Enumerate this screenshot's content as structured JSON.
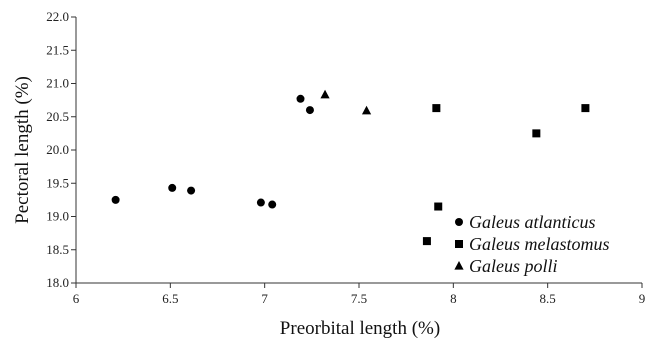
{
  "chart_data": {
    "type": "scatter",
    "xlabel": "Preorbital length (%)",
    "ylabel": "Pectoral length (%)",
    "xlim": [
      6,
      9
    ],
    "ylim": [
      18.0,
      22.0
    ],
    "x_ticks": [
      "6",
      "6.5",
      "7",
      "7.5",
      "8",
      "8.5",
      "9"
    ],
    "y_ticks": [
      "18.0",
      "18.5",
      "19.0",
      "19.5",
      "20.0",
      "20.5",
      "21.0",
      "21.5",
      "22.0"
    ],
    "legend_position": "bottom-right",
    "grid": false,
    "series": [
      {
        "name": "Galeus atlanticus",
        "marker": "circle",
        "points": [
          {
            "x": 6.21,
            "y": 19.25
          },
          {
            "x": 6.51,
            "y": 19.43
          },
          {
            "x": 6.61,
            "y": 19.39
          },
          {
            "x": 6.98,
            "y": 19.21
          },
          {
            "x": 7.04,
            "y": 19.18
          },
          {
            "x": 7.19,
            "y": 20.77
          },
          {
            "x": 7.24,
            "y": 20.6
          }
        ]
      },
      {
        "name": "Galeus melastomus",
        "marker": "square",
        "points": [
          {
            "x": 7.91,
            "y": 20.63
          },
          {
            "x": 8.7,
            "y": 20.63
          },
          {
            "x": 8.44,
            "y": 20.25
          },
          {
            "x": 7.92,
            "y": 19.15
          },
          {
            "x": 7.86,
            "y": 18.63
          }
        ]
      },
      {
        "name": "Galeus polli",
        "marker": "triangle",
        "points": [
          {
            "x": 7.32,
            "y": 20.83
          },
          {
            "x": 7.54,
            "y": 20.59
          }
        ]
      }
    ]
  }
}
